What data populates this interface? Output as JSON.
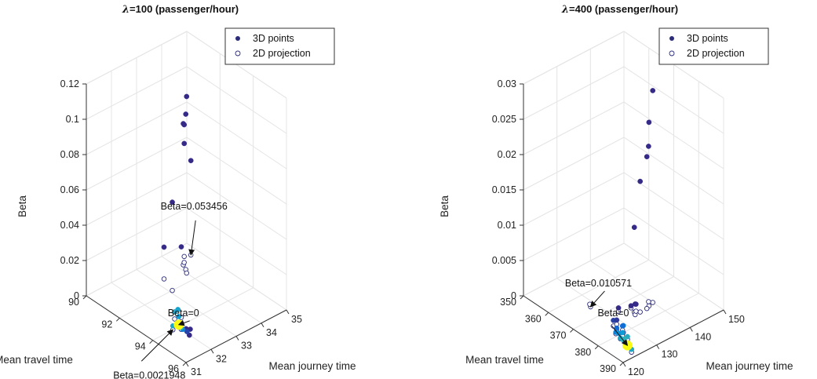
{
  "chart_data": [
    {
      "type": "scatter",
      "title_prefix": "λ",
      "title": "=100 (passenger/hour)",
      "xlabel": "Mean journey time",
      "ylabel": "Mean travel time",
      "zlabel": "Beta",
      "x_ticks": [
        "31",
        "32",
        "33",
        "34",
        "35"
      ],
      "y_ticks": [
        "90",
        "92",
        "94",
        "96"
      ],
      "z_ticks": [
        "0",
        "0.02",
        "0.04",
        "0.06",
        "0.08",
        "0.1",
        "0.12"
      ],
      "xlim": [
        31,
        35
      ],
      "ylim": [
        90,
        96
      ],
      "zlim": [
        0,
        0.12
      ],
      "grid": true,
      "legend": {
        "position": "top-right",
        "entries": [
          "3D points",
          "2D projection"
        ]
      },
      "series": [
        {
          "name": "3D points",
          "points": [
            {
              "x": 34.7,
              "y": 90.7,
              "z": 0.053456
            },
            {
              "x": 34.5,
              "y": 90.6,
              "z": 0.064
            },
            {
              "x": 34.2,
              "y": 91.0,
              "z": 0.08
            },
            {
              "x": 34.3,
              "y": 90.9,
              "z": 0.078
            },
            {
              "x": 34.1,
              "y": 91.3,
              "z": 0.088
            },
            {
              "x": 34.0,
              "y": 91.5,
              "z": 0.1
            },
            {
              "x": 33.1,
              "y": 92.0,
              "z": 0.05
            },
            {
              "x": 33.3,
              "y": 91.2,
              "z": 0.018
            },
            {
              "x": 32.4,
              "y": 93.6,
              "z": 0.04
            },
            {
              "x": 32.2,
              "y": 93.5,
              "z": 0.004
            },
            {
              "x": 32.0,
              "y": 94.0,
              "z": 0.01
            },
            {
              "x": 31.9,
              "y": 94.2,
              "z": 0.008
            },
            {
              "x": 31.5,
              "y": 95.5,
              "z": 0.012
            },
            {
              "x": 31.4,
              "y": 95.6,
              "z": 0.01
            },
            {
              "x": 31.6,
              "y": 95.1,
              "z": 0.009
            },
            {
              "x": 31.7,
              "y": 95.0,
              "z": 0.006
            },
            {
              "x": 31.8,
              "y": 94.6,
              "z": 0.004
            },
            {
              "x": 32.0,
              "y": 94.2,
              "z": 0.001
            },
            {
              "x": 31.8,
              "y": 94.0,
              "z": 0.0021948
            },
            {
              "x": 32.1,
              "y": 93.9,
              "z": 0.0
            }
          ]
        },
        {
          "name": "2D projection",
          "z": 0,
          "points": [
            {
              "x": 34.7,
              "y": 90.7
            },
            {
              "x": 34.5,
              "y": 90.6
            },
            {
              "x": 34.2,
              "y": 91.0
            },
            {
              "x": 34.3,
              "y": 90.9
            },
            {
              "x": 34.1,
              "y": 91.3
            },
            {
              "x": 34.0,
              "y": 91.5
            },
            {
              "x": 33.1,
              "y": 92.0
            },
            {
              "x": 33.3,
              "y": 91.2
            },
            {
              "x": 32.4,
              "y": 93.6
            },
            {
              "x": 32.2,
              "y": 93.5
            },
            {
              "x": 31.8,
              "y": 94.0
            },
            {
              "x": 32.1,
              "y": 93.9
            },
            {
              "x": 32.0,
              "y": 94.2
            }
          ]
        }
      ],
      "annotations": [
        {
          "text": "Beta=0.053456",
          "x": 34.7,
          "y": 90.7,
          "z": 0
        },
        {
          "text": "Beta=0",
          "x": 32.1,
          "y": 93.9,
          "z": 0
        },
        {
          "text": "Beta=0.0021948",
          "x": 31.8,
          "y": 94.0,
          "z": 0
        }
      ]
    },
    {
      "type": "scatter",
      "title_prefix": "λ",
      "title": "=400 (passenger/hour)",
      "xlabel": "Mean journey time",
      "ylabel": "Mean travel time",
      "zlabel": "Beta",
      "x_ticks": [
        "120",
        "130",
        "140",
        "150"
      ],
      "y_ticks": [
        "350",
        "360",
        "370",
        "380",
        "390"
      ],
      "z_ticks": [
        "0",
        "0.005",
        "0.01",
        "0.015",
        "0.02",
        "0.025",
        "0.03"
      ],
      "xlim": [
        120,
        150
      ],
      "ylim": [
        350,
        390
      ],
      "zlim": [
        0,
        0.03
      ],
      "grid": true,
      "legend": {
        "position": "top-right",
        "entries": [
          "3D points",
          "2D projection"
        ]
      },
      "series": [
        {
          "name": "3D points",
          "points": [
            {
              "x": 140.0,
              "y": 375.0,
              "z": 0.03
            },
            {
              "x": 138.5,
              "y": 375.5,
              "z": 0.026
            },
            {
              "x": 137.5,
              "y": 376.0,
              "z": 0.0215
            },
            {
              "x": 139.5,
              "y": 374.0,
              "z": 0.022
            },
            {
              "x": 135.5,
              "y": 376.0,
              "z": 0.0185
            },
            {
              "x": 134.5,
              "y": 375.0,
              "z": 0.012
            },
            {
              "x": 134.0,
              "y": 376.0,
              "z": 0.0015
            },
            {
              "x": 135.0,
              "y": 375.0,
              "z": 0.001
            },
            {
              "x": 135.0,
              "y": 373.0,
              "z": 0.0003
            },
            {
              "x": 132.0,
              "y": 372.0,
              "z": 0.0005
            },
            {
              "x": 124.0,
              "y": 388.0,
              "z": 0.0004
            },
            {
              "x": 127.5,
              "y": 380.0,
              "z": 0.001
            },
            {
              "x": 128.0,
              "y": 379.0,
              "z": 0.0006
            },
            {
              "x": 126.5,
              "y": 381.0,
              "z": 0.0005
            },
            {
              "x": 127.0,
              "y": 378.0,
              "z": 0.0003
            },
            {
              "x": 127.5,
              "y": 376.0,
              "z": 0.0008
            },
            {
              "x": 128.5,
              "y": 376.0,
              "z": 0.0006
            },
            {
              "x": 126.0,
              "y": 379.0,
              "z": 0.0002
            },
            {
              "x": 126.5,
              "y": 383.0,
              "z": 0.0004
            },
            {
              "x": 125.5,
              "y": 381.5,
              "z": 0.0001
            },
            {
              "x": 125.5,
              "y": 383.0,
              "z": 0.0003
            },
            {
              "x": 125.0,
              "y": 384.5,
              "z": 0.0002
            },
            {
              "x": 125.5,
              "y": 382.5,
              "z": 0.0001
            },
            {
              "x": 126.0,
              "y": 380.0,
              "z": 0.0003
            },
            {
              "x": 125.0,
              "y": 385.0,
              "z": 0.0
            }
          ]
        },
        {
          "name": "2D projection",
          "z": 0,
          "points": [
            {
              "x": 140.0,
              "y": 375.0
            },
            {
              "x": 138.5,
              "y": 375.5
            },
            {
              "x": 137.5,
              "y": 376.0
            },
            {
              "x": 139.5,
              "y": 374.0
            },
            {
              "x": 135.5,
              "y": 376.0
            },
            {
              "x": 134.5,
              "y": 375.0
            },
            {
              "x": 134.0,
              "y": 376.0
            },
            {
              "x": 135.0,
              "y": 375.0
            },
            {
              "x": 135.0,
              "y": 373.0
            },
            {
              "x": 132.0,
              "y": 372.0
            },
            {
              "x": 124.0,
              "y": 388.0
            },
            {
              "x": 127.5,
              "y": 380.0
            },
            {
              "x": 128.0,
              "y": 379.0
            },
            {
              "x": 126.5,
              "y": 381.0
            },
            {
              "x": 127.0,
              "y": 378.0
            },
            {
              "x": 127.5,
              "y": 376.0
            },
            {
              "x": 128.5,
              "y": 376.0
            },
            {
              "x": 126.0,
              "y": 379.0
            },
            {
              "x": 126.5,
              "y": 383.0
            },
            {
              "x": 125.5,
              "y": 381.5
            },
            {
              "x": 125.5,
              "y": 383.0
            },
            {
              "x": 125.0,
              "y": 384.5
            },
            {
              "x": 128.5,
              "y": 365.5
            },
            {
              "x": 129.0,
              "y": 364.5
            },
            {
              "x": 125.0,
              "y": 385.0
            }
          ]
        }
      ],
      "annotations": [
        {
          "text": "Beta=0",
          "x": 125.0,
          "y": 385.0,
          "z": 0
        },
        {
          "text": "Beta=0.010571",
          "x": 128.5,
          "y": 365.5,
          "z": 0
        }
      ]
    }
  ]
}
